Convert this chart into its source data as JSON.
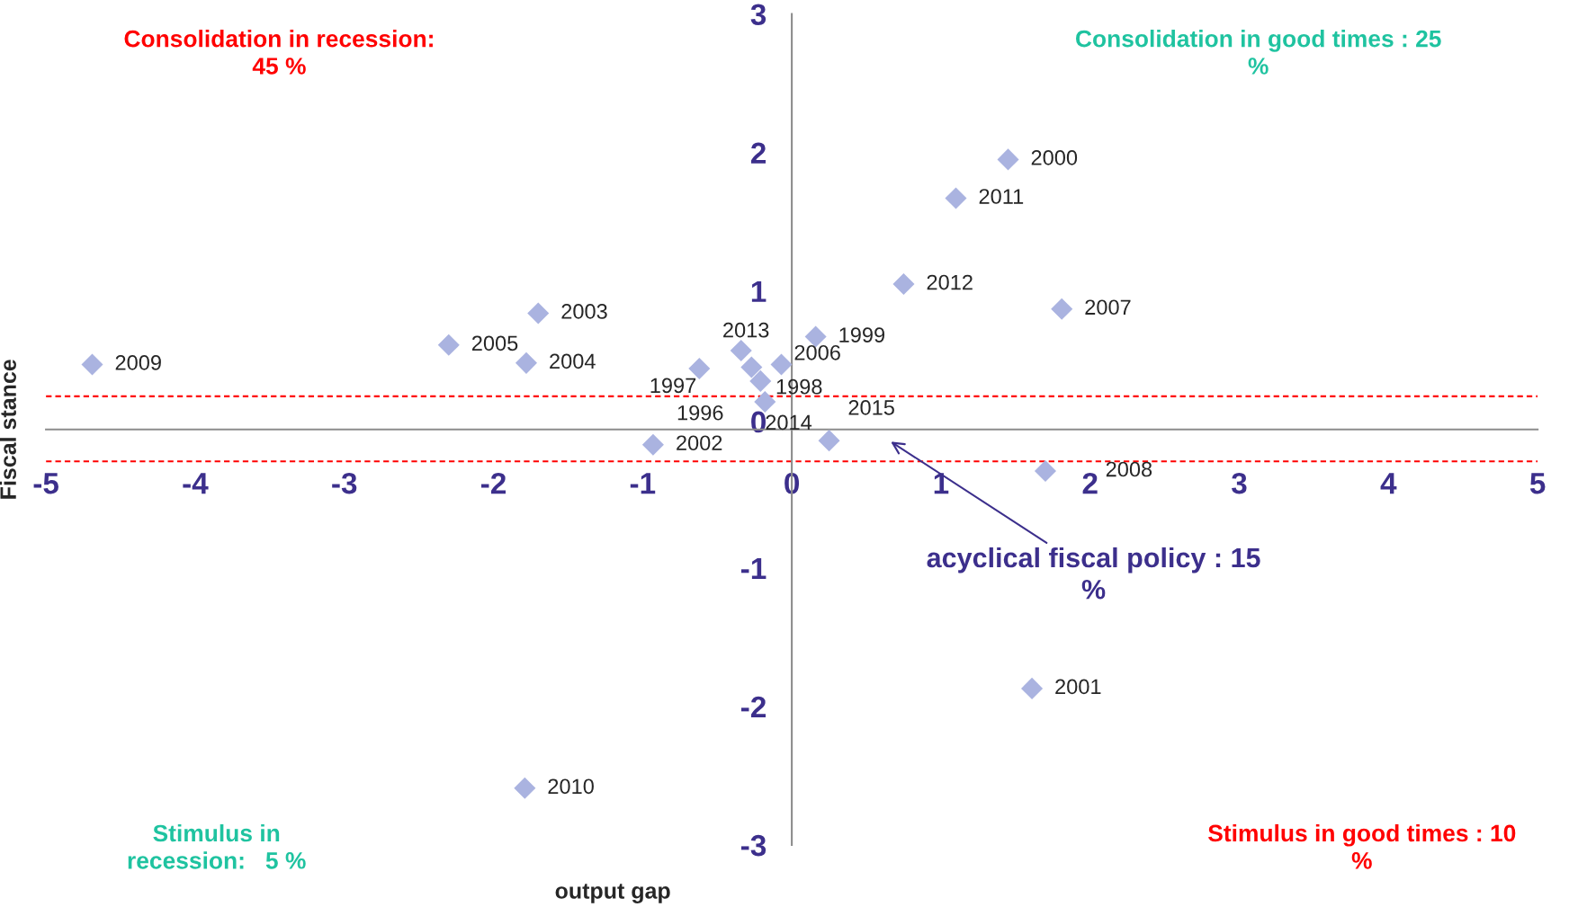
{
  "chart_data": {
    "type": "scatter",
    "xlabel": "output gap",
    "ylabel": "Fiscal stance",
    "x": [
      -4.69,
      -2.3,
      -1.78,
      -1.7,
      -0.62,
      -0.93,
      -0.34,
      -0.27,
      -0.21,
      -0.18,
      -0.07,
      0.16,
      0.25,
      0.75,
      1.1,
      1.45,
      1.81,
      1.7,
      1.61,
      -1.79
    ],
    "series": [
      {
        "color": "#aab3e0",
        "values": [
          0.47,
          0.61,
          0.48,
          0.84,
          0.44,
          -0.11,
          0.57,
          0.45,
          0.35,
          0.2,
          0.47,
          0.67,
          -0.08,
          1.05,
          1.67,
          1.95,
          0.87,
          -0.3,
          -1.87,
          -2.59
        ]
      }
    ],
    "marker": "diamond",
    "xlim": [
      -5,
      5
    ],
    "ylim": [
      -3,
      3
    ],
    "xticks": [
      -5,
      -4,
      -3,
      -2,
      -1,
      0,
      1,
      2,
      3,
      4,
      5
    ],
    "yticks": [
      -3,
      -2,
      -1,
      0,
      1,
      2,
      3
    ],
    "grid": false,
    "ref_lines": [
      {
        "axis": "y",
        "value": 0.24,
        "color": "#ff0000",
        "line_style": "dashed"
      },
      {
        "axis": "y",
        "value": -0.23,
        "color": "#ff0000",
        "line_style": "dashed"
      }
    ],
    "annotations": [
      {
        "text": "2009",
        "x": -4.69,
        "y": 0.47
      },
      {
        "text": "2005",
        "x": -2.3,
        "y": 0.61
      },
      {
        "text": "2004",
        "x": -1.78,
        "y": 0.48
      },
      {
        "text": "2003",
        "x": -1.7,
        "y": 0.84
      },
      {
        "text": "1997",
        "x": -0.62,
        "y": 0.44
      },
      {
        "text": "2002",
        "x": -0.93,
        "y": -0.11
      },
      {
        "text": "2013",
        "x": -0.34,
        "y": 0.57
      },
      {
        "text": "1996",
        "x": -0.27,
        "y": 0.45
      },
      {
        "text": "1998",
        "x": -0.21,
        "y": 0.35
      },
      {
        "text": "2014",
        "x": -0.18,
        "y": 0.2
      },
      {
        "text": "2006",
        "x": -0.07,
        "y": 0.47
      },
      {
        "text": "1999",
        "x": 0.16,
        "y": 0.67
      },
      {
        "text": "2015",
        "x": 0.25,
        "y": -0.08
      },
      {
        "text": "2012",
        "x": 0.75,
        "y": 1.05
      },
      {
        "text": "2011",
        "x": 1.1,
        "y": 1.67
      },
      {
        "text": "2000",
        "x": 1.45,
        "y": 1.95
      },
      {
        "text": "2007",
        "x": 1.81,
        "y": 0.87
      },
      {
        "text": "2008",
        "x": 1.7,
        "y": -0.3
      },
      {
        "text": "2001",
        "x": 1.61,
        "y": -1.87
      },
      {
        "text": "2010",
        "x": -1.79,
        "y": -2.59
      },
      "acyclical fiscal policy : 15\n%",
      "Consolidation in recession:\n45 %",
      "Consolidation in good times : 25\n%",
      "Stimulus in\nrecession:   5 %",
      "Stimulus in good times : 10\n%"
    ]
  }
}
